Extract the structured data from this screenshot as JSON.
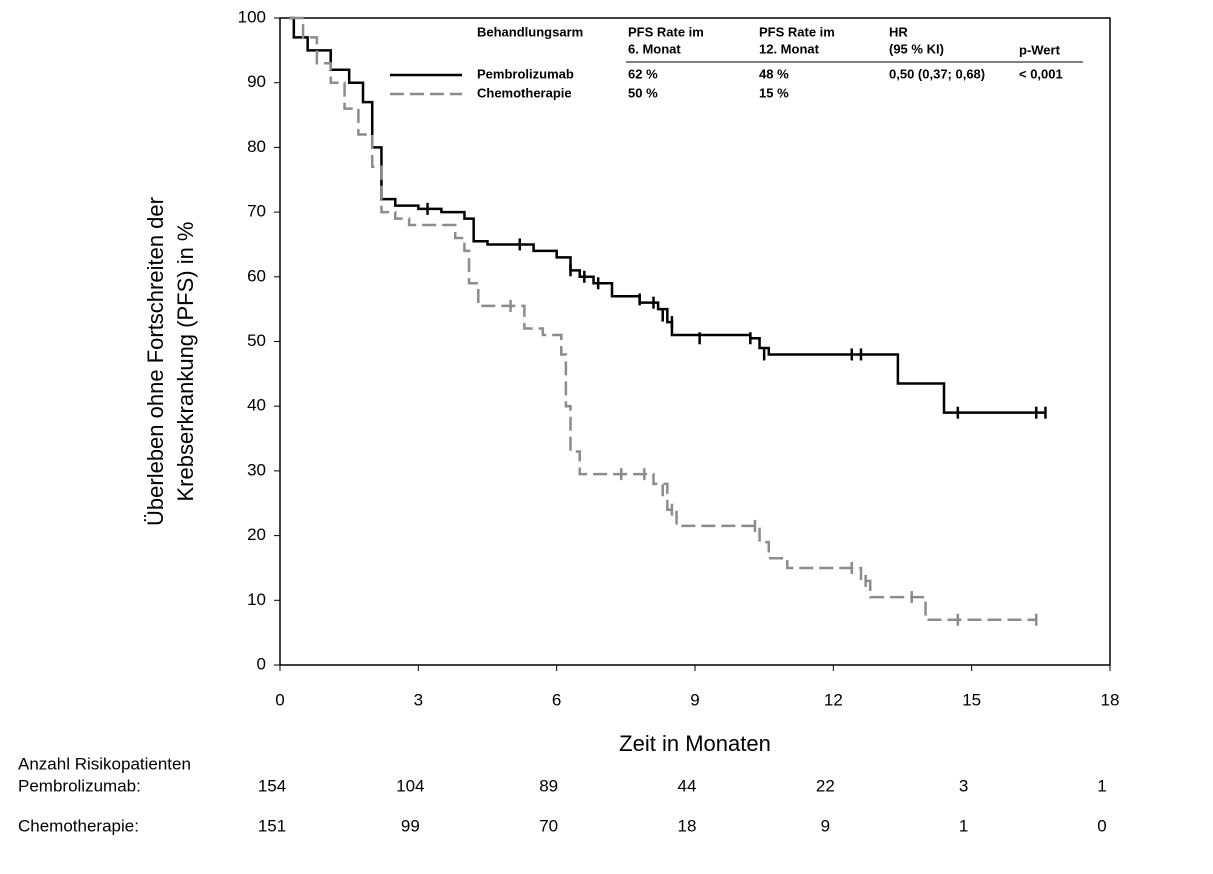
{
  "chart_data": {
    "type": "line",
    "drawstyle": "steps-post",
    "xlabel": "Zeit in Monaten",
    "ylabel": [
      "Überleben ohne Fortschreiten der",
      "Krebserkrankung (PFS) in %"
    ],
    "xlim": [
      0,
      18
    ],
    "xticks": [
      0,
      3,
      6,
      9,
      12,
      15,
      18
    ],
    "ylim": [
      0,
      100
    ],
    "yticks": [
      0,
      10,
      20,
      30,
      40,
      50,
      60,
      70,
      80,
      90,
      100
    ],
    "series": [
      {
        "name": "Pembrolizumab",
        "color": "#000000",
        "dash": false,
        "x": [
          0.2,
          0.3,
          0.6,
          1.1,
          1.5,
          1.8,
          2.0,
          2.2,
          2.5,
          3.0,
          3.5,
          4.0,
          4.2,
          4.5,
          5.5,
          6.0,
          6.3,
          6.5,
          6.8,
          7.2,
          7.8,
          8.2,
          8.4,
          8.5,
          10.2,
          10.4,
          10.6,
          13.4,
          14.4,
          16.6
        ],
        "values": [
          100,
          97,
          95,
          92,
          90,
          87,
          80,
          72,
          71,
          70.5,
          70,
          69,
          65.5,
          65,
          64,
          63,
          61,
          60,
          59,
          57,
          56,
          55,
          53,
          51,
          50.5,
          49,
          48,
          43.5,
          39,
          39
        ],
        "censored_x": [
          3.2,
          5.2,
          6.3,
          6.6,
          6.9,
          7.8,
          8.1,
          8.3,
          8.5,
          9.1,
          10.2,
          10.5,
          12.4,
          12.6,
          14.7,
          16.4,
          16.6
        ],
        "censored_values": [
          70.5,
          65,
          61,
          60,
          59,
          56.5,
          56,
          54,
          53,
          50.5,
          50.5,
          48,
          48,
          48,
          39,
          39,
          39
        ]
      },
      {
        "name": "Chemotherapie",
        "color": "#8c8c8c",
        "dash": true,
        "x": [
          0.2,
          0.5,
          0.8,
          1.1,
          1.4,
          1.7,
          2.0,
          2.2,
          2.5,
          2.8,
          3.8,
          4.0,
          4.1,
          4.3,
          5.3,
          5.7,
          6.1,
          6.2,
          6.3,
          6.5,
          8.1,
          8.4,
          8.6,
          10.4,
          10.6,
          11.0,
          12.6,
          12.8,
          14.0,
          16.4
        ],
        "values": [
          100,
          97,
          93,
          90,
          86,
          82,
          77,
          70,
          69,
          68,
          66,
          64,
          59,
          55.5,
          52,
          51,
          48,
          40,
          33,
          29.5,
          28,
          24,
          21.5,
          19,
          16.5,
          15,
          13,
          10.5,
          7,
          7
        ],
        "censored_x": [
          5.0,
          7.4,
          7.9,
          8.3,
          8.5,
          10.3,
          12.4,
          12.7,
          13.7,
          14.7,
          16.4
        ],
        "censored_values": [
          55.5,
          29.5,
          29.5,
          27,
          24,
          21.5,
          15,
          13,
          10.5,
          7,
          7
        ]
      }
    ],
    "legend_table": {
      "headers": [
        [
          "Behandlungsarm"
        ],
        [
          "PFS Rate im",
          "6. Monat"
        ],
        [
          "PFS Rate im",
          "12. Monat"
        ],
        [
          "HR",
          "(95 % KI)"
        ],
        [
          "p-Wert"
        ]
      ],
      "rows": [
        [
          "62 %",
          "48 %",
          "0,50 (0,37; 0,68)",
          "< 0,001"
        ],
        [
          "50 %",
          "15 %"
        ]
      ]
    },
    "risk_table": {
      "title": "Anzahl Risikopatienten",
      "rows": [
        {
          "label": "Pembrolizumab:",
          "values": [
            154,
            104,
            89,
            44,
            22,
            3,
            1
          ]
        },
        {
          "label": "Chemotherapie:",
          "values": [
            151,
            99,
            70,
            18,
            9,
            1,
            0
          ]
        }
      ]
    }
  }
}
